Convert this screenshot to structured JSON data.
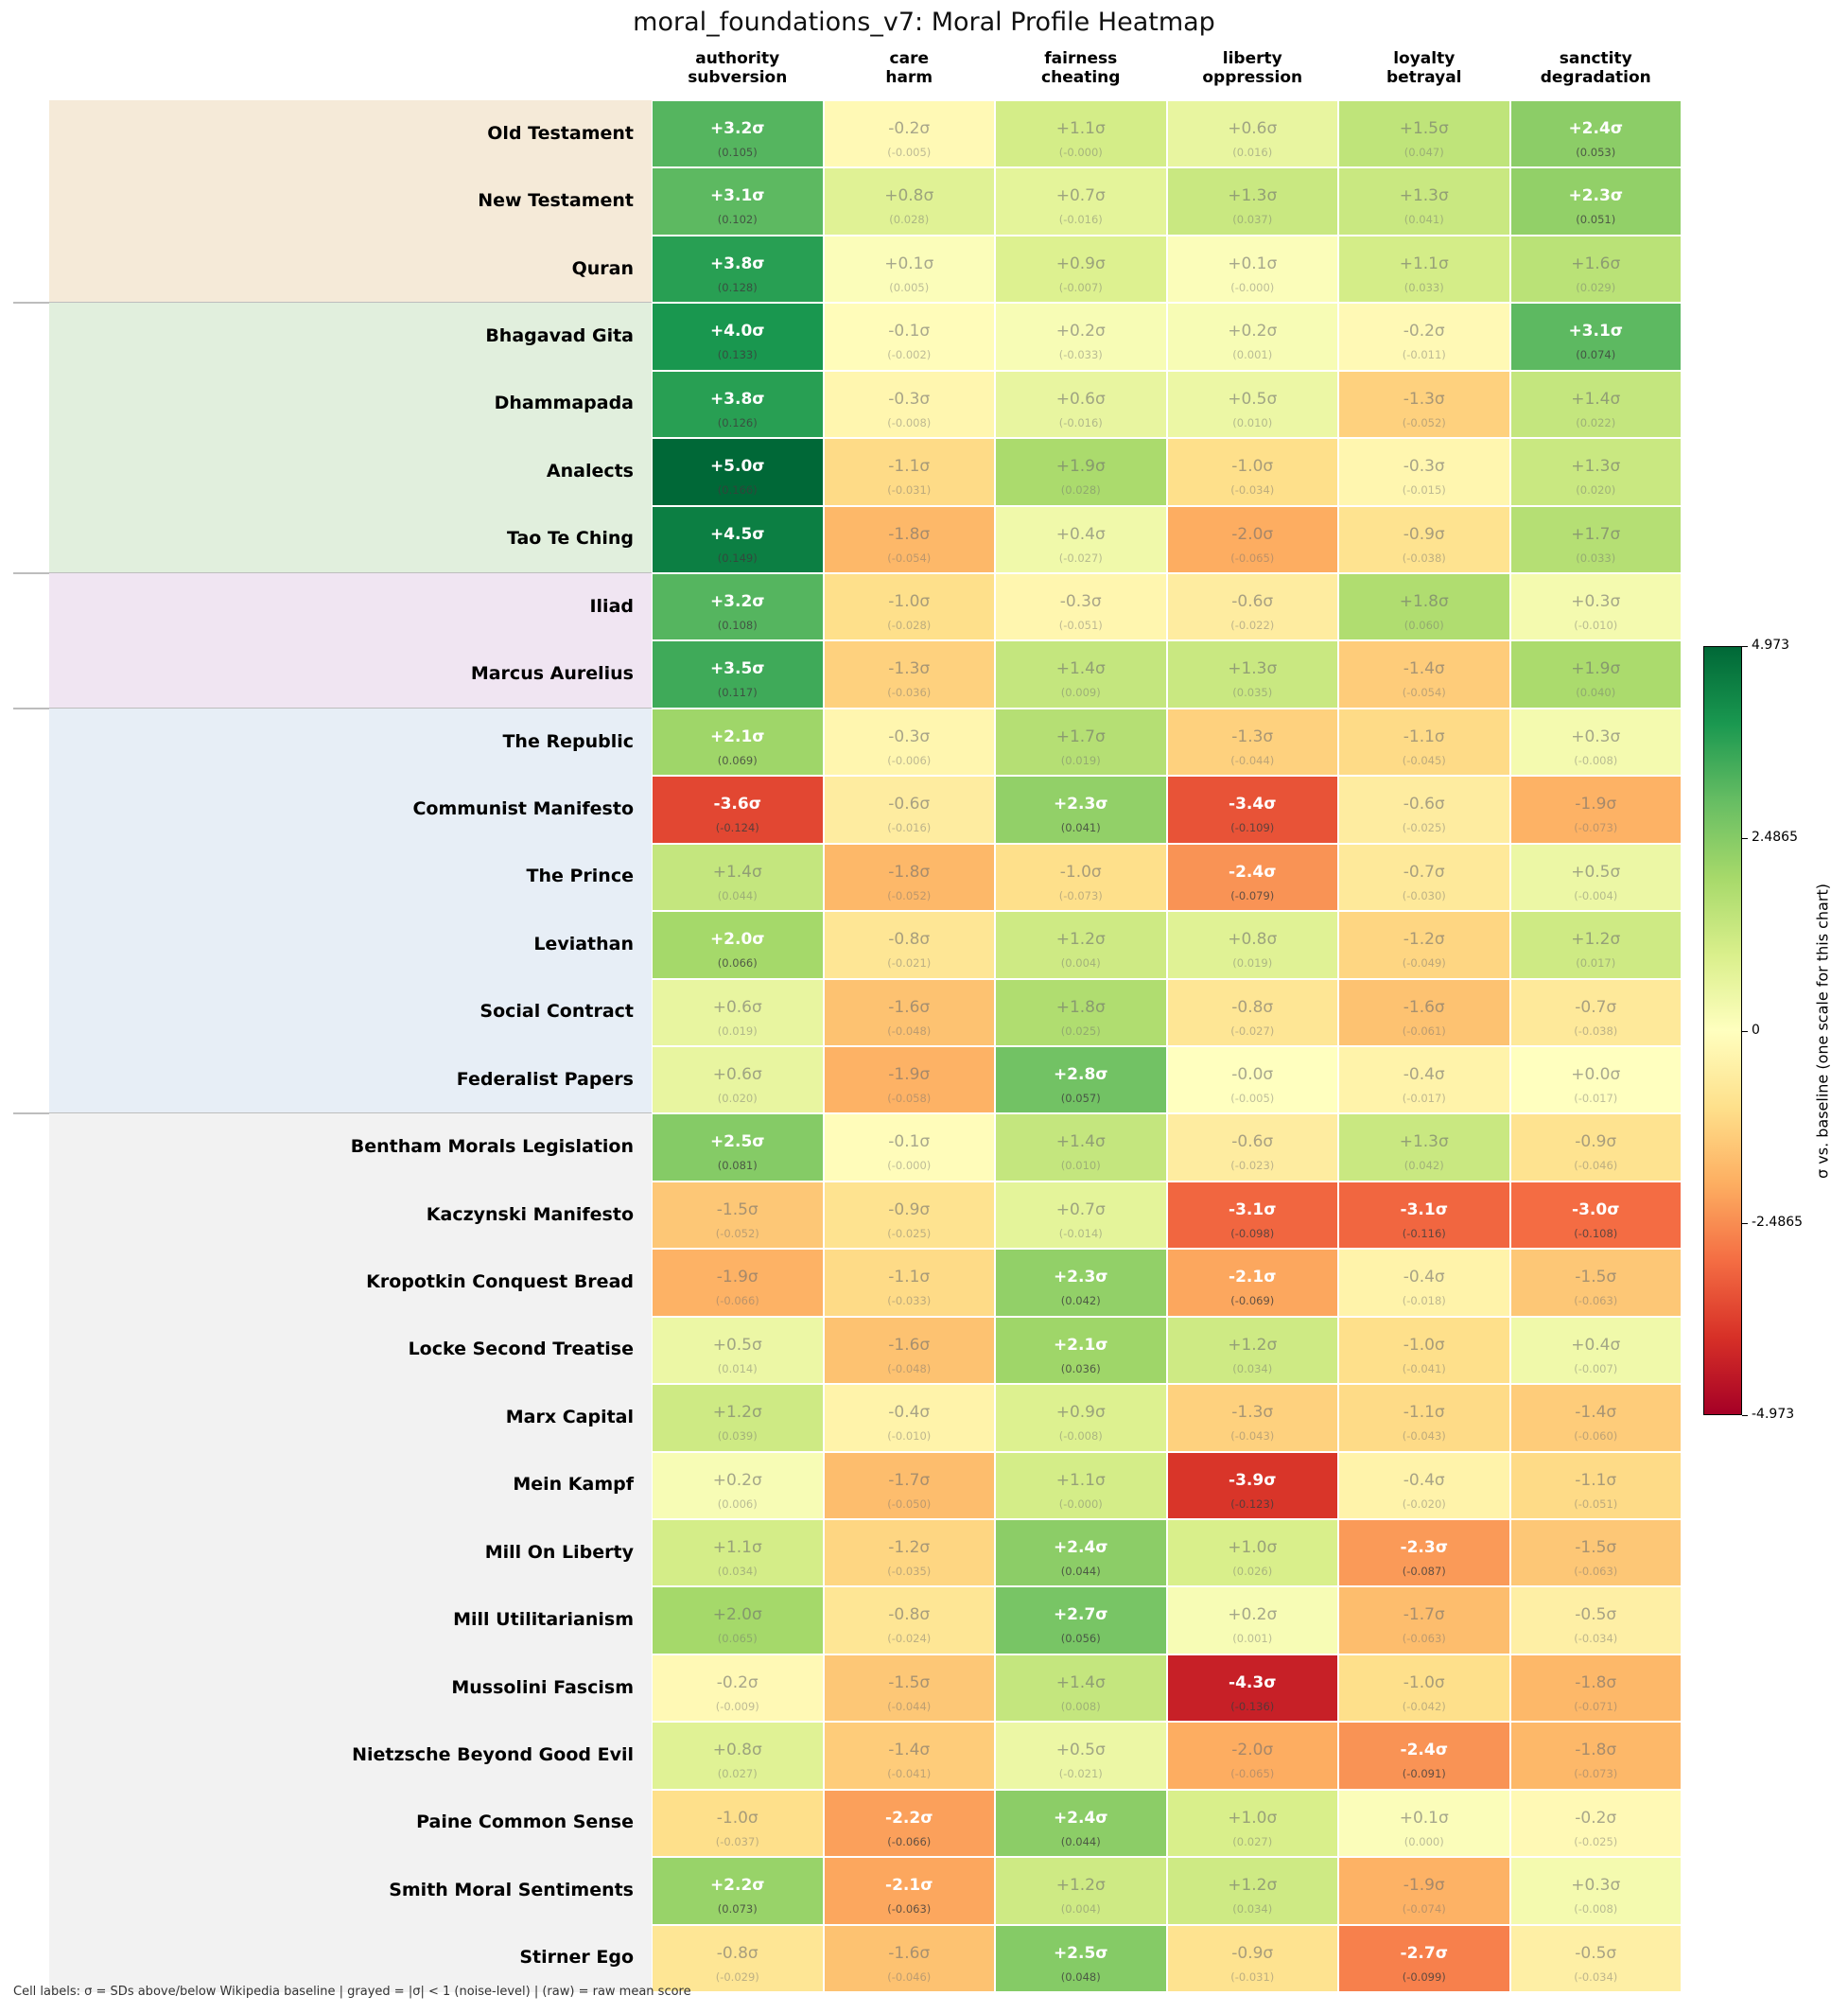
{
  "chart_data": {
    "type": "heatmap",
    "title": "moral_foundations_v7: Moral Profile Heatmap",
    "columns": [
      "authority\nsubversion",
      "care\nharm",
      "fairness\ncheating",
      "liberty\noppression",
      "loyalty\nbetrayal",
      "sanctity\ndegradation"
    ],
    "colormap": "RdYlGn",
    "vlim": [
      -4.973,
      4.973
    ],
    "colorbar": {
      "label": "σ vs. baseline (one scale for this chart)",
      "ticks": [
        "4.973",
        "2.4865",
        "0",
        "-2.4865",
        "-4.973"
      ]
    },
    "group_colors": [
      "#f5ead8",
      "#e1efdd",
      "#f0e5f2",
      "#e7eef6",
      "#f2f2f2"
    ],
    "rows": [
      {
        "name": "Old Testament",
        "group": 0,
        "sigma": [
          "+3.2σ",
          "-0.2σ",
          "+1.1σ",
          "+0.6σ",
          "+1.5σ",
          "+2.4σ"
        ],
        "raw": [
          "(0.105)",
          "(-0.005)",
          "(-0.000)",
          "(0.016)",
          "(0.047)",
          "(0.053)"
        ],
        "strong": [
          1,
          0,
          0,
          0,
          0,
          1
        ]
      },
      {
        "name": "New Testament",
        "group": 0,
        "sigma": [
          "+3.1σ",
          "+0.8σ",
          "+0.7σ",
          "+1.3σ",
          "+1.3σ",
          "+2.3σ"
        ],
        "raw": [
          "(0.102)",
          "(0.028)",
          "(-0.016)",
          "(0.037)",
          "(0.041)",
          "(0.051)"
        ],
        "strong": [
          1,
          0,
          0,
          0,
          0,
          1
        ]
      },
      {
        "name": "Quran",
        "group": 0,
        "sigma": [
          "+3.8σ",
          "+0.1σ",
          "+0.9σ",
          "+0.1σ",
          "+1.1σ",
          "+1.6σ"
        ],
        "raw": [
          "(0.128)",
          "(0.005)",
          "(-0.007)",
          "(-0.000)",
          "(0.033)",
          "(0.029)"
        ],
        "strong": [
          1,
          0,
          0,
          0,
          0,
          0
        ]
      },
      {
        "name": "Bhagavad Gita",
        "group": 1,
        "sigma": [
          "+4.0σ",
          "-0.1σ",
          "+0.2σ",
          "+0.2σ",
          "-0.2σ",
          "+3.1σ"
        ],
        "raw": [
          "(0.133)",
          "(-0.002)",
          "(-0.033)",
          "(0.001)",
          "(-0.011)",
          "(0.074)"
        ],
        "strong": [
          1,
          0,
          0,
          0,
          0,
          1
        ]
      },
      {
        "name": "Dhammapada",
        "group": 1,
        "sigma": [
          "+3.8σ",
          "-0.3σ",
          "+0.6σ",
          "+0.5σ",
          "-1.3σ",
          "+1.4σ"
        ],
        "raw": [
          "(0.126)",
          "(-0.008)",
          "(-0.016)",
          "(0.010)",
          "(-0.052)",
          "(0.022)"
        ],
        "strong": [
          1,
          0,
          0,
          0,
          0,
          0
        ]
      },
      {
        "name": "Analects",
        "group": 1,
        "sigma": [
          "+5.0σ",
          "-1.1σ",
          "+1.9σ",
          "-1.0σ",
          "-0.3σ",
          "+1.3σ"
        ],
        "raw": [
          "(0.166)",
          "(-0.031)",
          "(0.028)",
          "(-0.034)",
          "(-0.015)",
          "(0.020)"
        ],
        "strong": [
          1,
          0,
          0,
          0,
          0,
          0
        ]
      },
      {
        "name": "Tao Te Ching",
        "group": 1,
        "sigma": [
          "+4.5σ",
          "-1.8σ",
          "+0.4σ",
          "-2.0σ",
          "-0.9σ",
          "+1.7σ"
        ],
        "raw": [
          "(0.149)",
          "(-0.054)",
          "(-0.027)",
          "(-0.065)",
          "(-0.038)",
          "(0.033)"
        ],
        "strong": [
          1,
          0,
          0,
          0,
          0,
          0
        ]
      },
      {
        "name": "Iliad",
        "group": 2,
        "sigma": [
          "+3.2σ",
          "-1.0σ",
          "-0.3σ",
          "-0.6σ",
          "+1.8σ",
          "+0.3σ"
        ],
        "raw": [
          "(0.108)",
          "(-0.028)",
          "(-0.051)",
          "(-0.022)",
          "(0.060)",
          "(-0.010)"
        ],
        "strong": [
          1,
          0,
          0,
          0,
          0,
          0
        ]
      },
      {
        "name": "Marcus Aurelius",
        "group": 2,
        "sigma": [
          "+3.5σ",
          "-1.3σ",
          "+1.4σ",
          "+1.3σ",
          "-1.4σ",
          "+1.9σ"
        ],
        "raw": [
          "(0.117)",
          "(-0.036)",
          "(0.009)",
          "(0.035)",
          "(-0.054)",
          "(0.040)"
        ],
        "strong": [
          1,
          0,
          0,
          0,
          0,
          0
        ]
      },
      {
        "name": "The Republic",
        "group": 3,
        "sigma": [
          "+2.1σ",
          "-0.3σ",
          "+1.7σ",
          "-1.3σ",
          "-1.1σ",
          "+0.3σ"
        ],
        "raw": [
          "(0.069)",
          "(-0.006)",
          "(0.019)",
          "(-0.044)",
          "(-0.045)",
          "(-0.008)"
        ],
        "strong": [
          1,
          0,
          0,
          0,
          0,
          0
        ]
      },
      {
        "name": "Communist Manifesto",
        "group": 3,
        "sigma": [
          "-3.6σ",
          "-0.6σ",
          "+2.3σ",
          "-3.4σ",
          "-0.6σ",
          "-1.9σ"
        ],
        "raw": [
          "(-0.124)",
          "(-0.016)",
          "(0.041)",
          "(-0.109)",
          "(-0.025)",
          "(-0.073)"
        ],
        "strong": [
          1,
          0,
          1,
          1,
          0,
          0
        ]
      },
      {
        "name": "The Prince",
        "group": 3,
        "sigma": [
          "+1.4σ",
          "-1.8σ",
          "-1.0σ",
          "-2.4σ",
          "-0.7σ",
          "+0.5σ"
        ],
        "raw": [
          "(0.044)",
          "(-0.052)",
          "(-0.073)",
          "(-0.079)",
          "(-0.030)",
          "(-0.004)"
        ],
        "strong": [
          0,
          0,
          0,
          1,
          0,
          0
        ]
      },
      {
        "name": "Leviathan",
        "group": 3,
        "sigma": [
          "+2.0σ",
          "-0.8σ",
          "+1.2σ",
          "+0.8σ",
          "-1.2σ",
          "+1.2σ"
        ],
        "raw": [
          "(0.066)",
          "(-0.021)",
          "(0.004)",
          "(0.019)",
          "(-0.049)",
          "(0.017)"
        ],
        "strong": [
          1,
          0,
          0,
          0,
          0,
          0
        ]
      },
      {
        "name": "Social Contract",
        "group": 3,
        "sigma": [
          "+0.6σ",
          "-1.6σ",
          "+1.8σ",
          "-0.8σ",
          "-1.6σ",
          "-0.7σ"
        ],
        "raw": [
          "(0.019)",
          "(-0.048)",
          "(0.025)",
          "(-0.027)",
          "(-0.061)",
          "(-0.038)"
        ],
        "strong": [
          0,
          0,
          0,
          0,
          0,
          0
        ]
      },
      {
        "name": "Federalist Papers",
        "group": 3,
        "sigma": [
          "+0.6σ",
          "-1.9σ",
          "+2.8σ",
          "-0.0σ",
          "-0.4σ",
          "+0.0σ"
        ],
        "raw": [
          "(0.020)",
          "(-0.058)",
          "(0.057)",
          "(-0.005)",
          "(-0.017)",
          "(-0.017)"
        ],
        "strong": [
          0,
          0,
          1,
          0,
          0,
          0
        ]
      },
      {
        "name": "Bentham Morals Legislation",
        "group": 4,
        "sigma": [
          "+2.5σ",
          "-0.1σ",
          "+1.4σ",
          "-0.6σ",
          "+1.3σ",
          "-0.9σ"
        ],
        "raw": [
          "(0.081)",
          "(-0.000)",
          "(0.010)",
          "(-0.023)",
          "(0.042)",
          "(-0.046)"
        ],
        "strong": [
          1,
          0,
          0,
          0,
          0,
          0
        ]
      },
      {
        "name": "Kaczynski Manifesto",
        "group": 4,
        "sigma": [
          "-1.5σ",
          "-0.9σ",
          "+0.7σ",
          "-3.1σ",
          "-3.1σ",
          "-3.0σ"
        ],
        "raw": [
          "(-0.052)",
          "(-0.025)",
          "(-0.014)",
          "(-0.098)",
          "(-0.116)",
          "(-0.108)"
        ],
        "strong": [
          0,
          0,
          0,
          1,
          1,
          1
        ]
      },
      {
        "name": "Kropotkin Conquest Bread",
        "group": 4,
        "sigma": [
          "-1.9σ",
          "-1.1σ",
          "+2.3σ",
          "-2.1σ",
          "-0.4σ",
          "-1.5σ"
        ],
        "raw": [
          "(-0.066)",
          "(-0.033)",
          "(0.042)",
          "(-0.069)",
          "(-0.018)",
          "(-0.063)"
        ],
        "strong": [
          0,
          0,
          1,
          1,
          0,
          0
        ]
      },
      {
        "name": "Locke Second Treatise",
        "group": 4,
        "sigma": [
          "+0.5σ",
          "-1.6σ",
          "+2.1σ",
          "+1.2σ",
          "-1.0σ",
          "+0.4σ"
        ],
        "raw": [
          "(0.014)",
          "(-0.048)",
          "(0.036)",
          "(0.034)",
          "(-0.041)",
          "(-0.007)"
        ],
        "strong": [
          0,
          0,
          1,
          0,
          0,
          0
        ]
      },
      {
        "name": "Marx Capital",
        "group": 4,
        "sigma": [
          "+1.2σ",
          "-0.4σ",
          "+0.9σ",
          "-1.3σ",
          "-1.1σ",
          "-1.4σ"
        ],
        "raw": [
          "(0.039)",
          "(-0.010)",
          "(-0.008)",
          "(-0.043)",
          "(-0.043)",
          "(-0.060)"
        ],
        "strong": [
          0,
          0,
          0,
          0,
          0,
          0
        ]
      },
      {
        "name": "Mein Kampf",
        "group": 4,
        "sigma": [
          "+0.2σ",
          "-1.7σ",
          "+1.1σ",
          "-3.9σ",
          "-0.4σ",
          "-1.1σ"
        ],
        "raw": [
          "(0.006)",
          "(-0.050)",
          "(-0.000)",
          "(-0.123)",
          "(-0.020)",
          "(-0.051)"
        ],
        "strong": [
          0,
          0,
          0,
          1,
          0,
          0
        ]
      },
      {
        "name": "Mill On Liberty",
        "group": 4,
        "sigma": [
          "+1.1σ",
          "-1.2σ",
          "+2.4σ",
          "+1.0σ",
          "-2.3σ",
          "-1.5σ"
        ],
        "raw": [
          "(0.034)",
          "(-0.035)",
          "(0.044)",
          "(0.026)",
          "(-0.087)",
          "(-0.063)"
        ],
        "strong": [
          0,
          0,
          1,
          0,
          1,
          0
        ]
      },
      {
        "name": "Mill Utilitarianism",
        "group": 4,
        "sigma": [
          "+2.0σ",
          "-0.8σ",
          "+2.7σ",
          "+0.2σ",
          "-1.7σ",
          "-0.5σ"
        ],
        "raw": [
          "(0.065)",
          "(-0.024)",
          "(0.056)",
          "(0.001)",
          "(-0.063)",
          "(-0.034)"
        ],
        "strong": [
          0,
          0,
          1,
          0,
          0,
          0
        ]
      },
      {
        "name": "Mussolini Fascism",
        "group": 4,
        "sigma": [
          "-0.2σ",
          "-1.5σ",
          "+1.4σ",
          "-4.3σ",
          "-1.0σ",
          "-1.8σ"
        ],
        "raw": [
          "(-0.009)",
          "(-0.044)",
          "(0.008)",
          "(-0.136)",
          "(-0.042)",
          "(-0.071)"
        ],
        "strong": [
          0,
          0,
          0,
          1,
          0,
          0
        ]
      },
      {
        "name": "Nietzsche Beyond Good Evil",
        "group": 4,
        "sigma": [
          "+0.8σ",
          "-1.4σ",
          "+0.5σ",
          "-2.0σ",
          "-2.4σ",
          "-1.8σ"
        ],
        "raw": [
          "(0.027)",
          "(-0.041)",
          "(-0.021)",
          "(-0.065)",
          "(-0.091)",
          "(-0.073)"
        ],
        "strong": [
          0,
          0,
          0,
          0,
          1,
          0
        ]
      },
      {
        "name": "Paine Common Sense",
        "group": 4,
        "sigma": [
          "-1.0σ",
          "-2.2σ",
          "+2.4σ",
          "+1.0σ",
          "+0.1σ",
          "-0.2σ"
        ],
        "raw": [
          "(-0.037)",
          "(-0.066)",
          "(0.044)",
          "(0.027)",
          "(0.000)",
          "(-0.025)"
        ],
        "strong": [
          0,
          1,
          1,
          0,
          0,
          0
        ]
      },
      {
        "name": "Smith Moral Sentiments",
        "group": 4,
        "sigma": [
          "+2.2σ",
          "-2.1σ",
          "+1.2σ",
          "+1.2σ",
          "-1.9σ",
          "+0.3σ"
        ],
        "raw": [
          "(0.073)",
          "(-0.063)",
          "(0.004)",
          "(0.034)",
          "(-0.074)",
          "(-0.008)"
        ],
        "strong": [
          1,
          1,
          0,
          0,
          0,
          0
        ]
      },
      {
        "name": "Stirner Ego",
        "group": 4,
        "sigma": [
          "-0.8σ",
          "-1.6σ",
          "+2.5σ",
          "-0.9σ",
          "-2.7σ",
          "-0.5σ"
        ],
        "raw": [
          "(-0.029)",
          "(-0.046)",
          "(0.048)",
          "(-0.031)",
          "(-0.099)",
          "(-0.034)"
        ],
        "strong": [
          0,
          0,
          1,
          0,
          1,
          0
        ]
      }
    ]
  },
  "footer": "Cell labels: σ = SDs above/below Wikipedia baseline  |  grayed = |σ| < 1 (noise-level)  |  (raw) = raw mean score"
}
